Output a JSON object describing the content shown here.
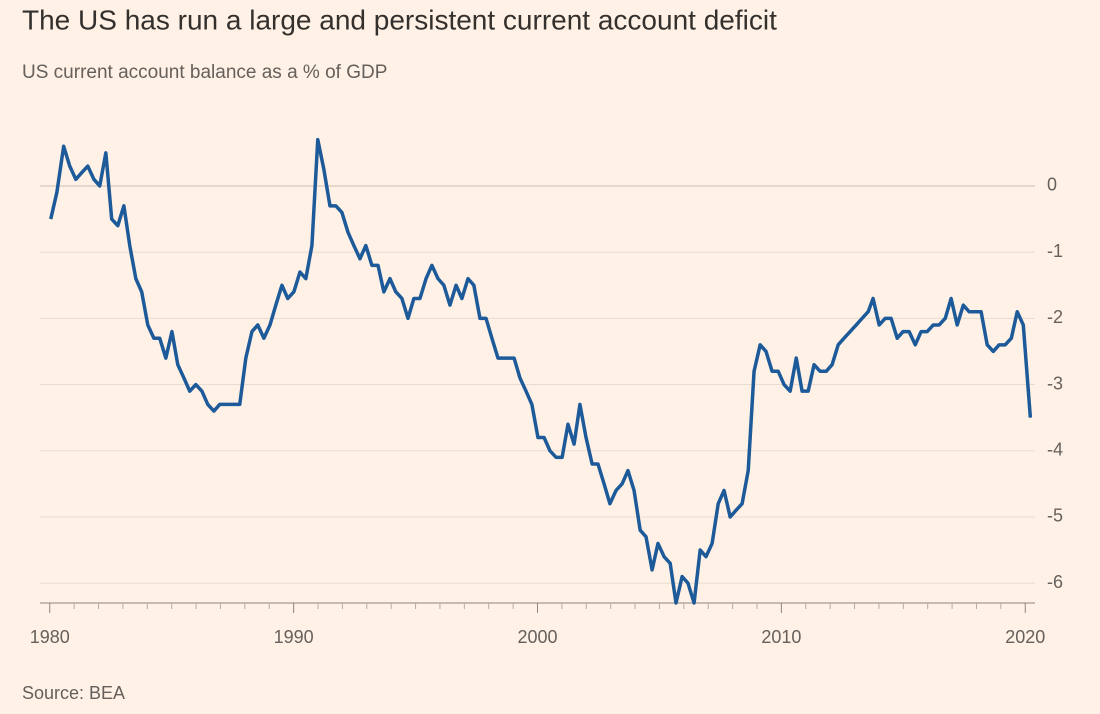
{
  "chart_data": {
    "type": "line",
    "title": "The US has run a large and persistent current account deficit",
    "subtitle": "US current account balance as a % of GDP",
    "source": "Source: BEA",
    "color": "#1d5a99",
    "grid": true,
    "xlim": [
      1979.6,
      2020.4
    ],
    "ylim": [
      -6.3,
      0.8
    ],
    "xticks": [
      1980,
      1990,
      2000,
      2010,
      2020
    ],
    "xminorticks": [
      1981,
      1982,
      1983,
      1984,
      1985,
      1986,
      1987,
      1988,
      1989,
      1991,
      1992,
      1993,
      1994,
      1995,
      1996,
      1997,
      1998,
      1999,
      2001,
      2002,
      2003,
      2004,
      2005,
      2006,
      2007,
      2008,
      2009,
      2011,
      2012,
      2013,
      2014,
      2015,
      2016,
      2017,
      2018,
      2019
    ],
    "yticks": [
      0,
      -1,
      -2,
      -3,
      -4,
      -5,
      -6
    ],
    "x": [
      1980.04,
      1980.29,
      1980.57,
      1980.82,
      1981.07,
      1981.31,
      1981.56,
      1981.81,
      1982.05,
      1982.3,
      1982.54,
      1982.79,
      1983.04,
      1983.28,
      1983.53,
      1983.77,
      1984.02,
      1984.27,
      1984.51,
      1984.76,
      1985.01,
      1985.25,
      1985.5,
      1985.74,
      1985.99,
      1986.24,
      1986.48,
      1986.73,
      1986.97,
      1987.22,
      1987.47,
      1987.79,
      1988.04,
      1988.29,
      1988.53,
      1988.78,
      1989.03,
      1989.27,
      1989.52,
      1989.76,
      1990.01,
      1990.26,
      1990.5,
      1990.75,
      1990.99,
      1991.24,
      1991.49,
      1991.73,
      1991.98,
      1992.23,
      1992.47,
      1992.72,
      1992.96,
      1993.21,
      1993.46,
      1993.7,
      1993.95,
      1994.19,
      1994.44,
      1994.69,
      1994.93,
      1995.18,
      1995.43,
      1995.67,
      1995.92,
      1996.16,
      1996.41,
      1996.66,
      1996.9,
      1997.15,
      1997.39,
      1997.64,
      1997.89,
      1998.13,
      1998.38,
      1998.63,
      1998.87,
      1999.04,
      1999.28,
      1999.53,
      1999.77,
      2000.02,
      2000.27,
      2000.51,
      2000.76,
      2001.01,
      2001.25,
      2001.5,
      2001.74,
      2001.99,
      2002.24,
      2002.48,
      2002.73,
      2002.97,
      2003.22,
      2003.47,
      2003.71,
      2003.96,
      2004.21,
      2004.45,
      2004.7,
      2004.94,
      2005.19,
      2005.44,
      2005.68,
      2005.93,
      2006.17,
      2006.42,
      2006.67,
      2006.91,
      2007.16,
      2007.41,
      2007.65,
      2007.9,
      2008.14,
      2008.39,
      2008.64,
      2008.88,
      2009.13,
      2009.37,
      2009.62,
      2009.87,
      2010.11,
      2010.36,
      2010.61,
      2010.85,
      2011.1,
      2011.34,
      2011.59,
      2011.84,
      2012.08,
      2012.33,
      2012.57,
      2012.82,
      2013.07,
      2013.31,
      2013.56,
      2013.76,
      2014.01,
      2014.26,
      2014.5,
      2014.75,
      2014.99,
      2015.24,
      2015.49,
      2015.73,
      2015.98,
      2016.23,
      2016.47,
      2016.72,
      2016.96,
      2017.21,
      2017.46,
      2017.7,
      2017.95,
      2018.19,
      2018.44,
      2018.69,
      2018.93,
      2019.18,
      2019.43,
      2019.67,
      2019.92,
      2020.21
    ],
    "series": [
      {
        "name": "US current account balance",
        "color": "#1d5a99",
        "values": [
          -0.5,
          -0.1,
          0.6,
          0.3,
          0.1,
          0.2,
          0.3,
          0.1,
          0.0,
          0.5,
          -0.5,
          -0.6,
          -0.3,
          -0.9,
          -1.4,
          -1.6,
          -2.1,
          -2.3,
          -2.3,
          -2.6,
          -2.2,
          -2.7,
          -2.9,
          -3.1,
          -3.0,
          -3.1,
          -3.3,
          -3.4,
          -3.3,
          -3.3,
          -3.3,
          -3.3,
          -2.6,
          -2.2,
          -2.1,
          -2.3,
          -2.1,
          -1.8,
          -1.5,
          -1.7,
          -1.6,
          -1.3,
          -1.4,
          -0.9,
          0.7,
          0.25,
          -0.3,
          -0.3,
          -0.4,
          -0.7,
          -0.9,
          -1.1,
          -0.9,
          -1.2,
          -1.2,
          -1.6,
          -1.4,
          -1.6,
          -1.7,
          -2.0,
          -1.7,
          -1.7,
          -1.4,
          -1.2,
          -1.4,
          -1.5,
          -1.8,
          -1.5,
          -1.7,
          -1.4,
          -1.5,
          -2.0,
          -2.0,
          -2.3,
          -2.6,
          -2.6,
          -2.6,
          -2.6,
          -2.9,
          -3.1,
          -3.3,
          -3.8,
          -3.8,
          -4.0,
          -4.1,
          -4.1,
          -3.6,
          -3.9,
          -3.3,
          -3.8,
          -4.2,
          -4.2,
          -4.5,
          -4.8,
          -4.6,
          -4.5,
          -4.3,
          -4.6,
          -5.2,
          -5.3,
          -5.8,
          -5.4,
          -5.6,
          -5.7,
          -6.3,
          -5.9,
          -6.0,
          -6.3,
          -5.5,
          -5.6,
          -5.4,
          -4.8,
          -4.6,
          -5.0,
          -4.9,
          -4.8,
          -4.3,
          -2.8,
          -2.4,
          -2.5,
          -2.8,
          -2.8,
          -3.0,
          -3.1,
          -2.6,
          -3.1,
          -3.1,
          -2.7,
          -2.8,
          -2.8,
          -2.7,
          -2.4,
          -2.3,
          -2.2,
          -2.1,
          -2.0,
          -1.9,
          -1.7,
          -2.1,
          -2.0,
          -2.0,
          -2.3,
          -2.2,
          -2.2,
          -2.4,
          -2.2,
          -2.2,
          -2.1,
          -2.1,
          -2.0,
          -1.7,
          -2.1,
          -1.8,
          -1.9,
          -1.9,
          -1.9,
          -2.4,
          -2.5,
          -2.4,
          -2.4,
          -2.3,
          -1.9,
          -2.1,
          -3.5
        ]
      }
    ]
  }
}
